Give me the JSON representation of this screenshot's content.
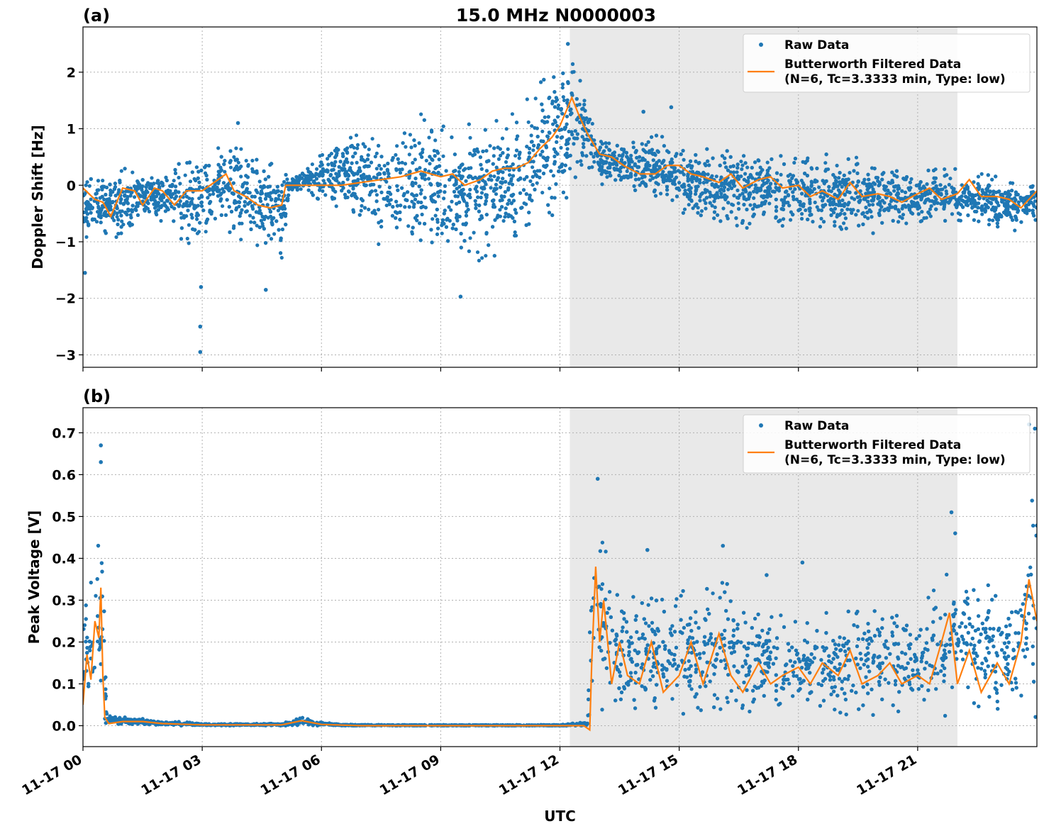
{
  "figure_title": "15.0 MHz N0000003",
  "colors": {
    "raw": "#1f77b4",
    "filtered": "#ff7f0e",
    "shade": "#d3d3d3",
    "grid": "#b0b0b0"
  },
  "chart_data": [
    {
      "type": "scatter",
      "panel": "(a)",
      "ylabel": "Doppler Shift [Hz]",
      "xlabel": "",
      "x_unit": "hours since 11-17 00 UTC",
      "xlim": [
        0,
        24
      ],
      "ylim": [
        -3.22,
        2.8
      ],
      "yticks": [
        2,
        1,
        0,
        -1,
        -2,
        -3
      ],
      "ytick_labels": [
        "2",
        "1",
        "0",
        "−1",
        "−2",
        "−3"
      ],
      "shaded_interval": [
        12.25,
        22.0
      ],
      "grid": true,
      "legend_position": "top-right",
      "legend": {
        "raw": "Raw Data",
        "filtered_line1": "Butterworth Filtered Data",
        "filtered_line2": "(N=6, Tc=3.3333 min, Type: low)"
      },
      "series": [
        {
          "name": "Raw Data",
          "kind": "band",
          "x": [
            0,
            0.5,
            1,
            1.5,
            2,
            2.5,
            3,
            3.5,
            4,
            4.5,
            5,
            5.2,
            5.5,
            6,
            6.5,
            7,
            7.5,
            8,
            8.5,
            9,
            9.5,
            10,
            10.5,
            11,
            11.5,
            12,
            12.3,
            12.6,
            13,
            13.5,
            14,
            14.5,
            15,
            15.5,
            16,
            16.5,
            17,
            17.5,
            18,
            18.5,
            19,
            19.5,
            20,
            20.5,
            21,
            21.5,
            22,
            22.5,
            23,
            23.5,
            24
          ],
          "low": [
            -1.0,
            -0.8,
            -1.2,
            -0.6,
            -0.7,
            -1.0,
            -1.2,
            -0.7,
            -1.1,
            -1.2,
            -1.3,
            -0.1,
            -0.1,
            -0.3,
            -0.4,
            -0.7,
            -1.1,
            -1.1,
            -1.2,
            -1.5,
            -1.5,
            -1.4,
            -1.2,
            -1.1,
            -0.9,
            -0.5,
            0.0,
            0.3,
            0.0,
            0.0,
            -0.2,
            -0.3,
            -0.5,
            -0.6,
            -0.7,
            -0.8,
            -0.7,
            -0.8,
            -0.8,
            -0.9,
            -0.8,
            -0.8,
            -0.9,
            -0.7,
            -0.8,
            -0.6,
            -0.7,
            -0.7,
            -0.8,
            -0.8,
            -0.6
          ],
          "high": [
            0.1,
            0.2,
            0.3,
            0.25,
            0.3,
            0.5,
            0.6,
            0.8,
            0.7,
            0.5,
            0.3,
            0.1,
            0.2,
            0.6,
            0.9,
            1.0,
            1.1,
            1.3,
            1.4,
            1.3,
            1.2,
            1.3,
            1.3,
            1.4,
            1.9,
            2.1,
            2.3,
            1.9,
            0.8,
            0.7,
            0.9,
            1.0,
            0.6,
            0.7,
            0.6,
            0.7,
            0.6,
            0.6,
            0.6,
            0.6,
            0.5,
            0.5,
            0.4,
            0.4,
            0.3,
            0.3,
            0.3,
            0.2,
            0.2,
            0.1,
            0.05
          ],
          "outliers": [
            {
              "x": 0.05,
              "y": -1.55
            },
            {
              "x": 2.95,
              "y": -2.95
            },
            {
              "x": 2.95,
              "y": -2.5
            },
            {
              "x": 2.97,
              "y": -1.8
            },
            {
              "x": 4.6,
              "y": -1.85
            },
            {
              "x": 9.5,
              "y": -1.97
            },
            {
              "x": 12.2,
              "y": 2.5
            },
            {
              "x": 14.8,
              "y": 1.38
            },
            {
              "x": 14.1,
              "y": 1.3
            },
            {
              "x": 3.9,
              "y": 1.1
            }
          ]
        },
        {
          "name": "Butterworth Filtered Data",
          "kind": "line",
          "x": [
            0,
            0.3,
            0.5,
            0.7,
            1,
            1.3,
            1.5,
            1.8,
            2,
            2.3,
            2.6,
            3,
            3.3,
            3.6,
            3.8,
            4.1,
            4.4,
            4.7,
            5.0,
            5.1,
            5.3,
            6,
            6.5,
            7,
            7.5,
            8,
            8.5,
            9,
            9.3,
            9.6,
            10,
            10.3,
            10.6,
            10.9,
            11.2,
            11.5,
            11.8,
            12.0,
            12.3,
            12.5,
            12.7,
            13.0,
            13.3,
            13.6,
            14.0,
            14.4,
            14.7,
            15.0,
            15.3,
            15.6,
            16.0,
            16.3,
            16.6,
            17.0,
            17.3,
            17.6,
            18.0,
            18.3,
            18.6,
            19.0,
            19.3,
            19.6,
            20.0,
            20.3,
            20.6,
            21.0,
            21.3,
            21.6,
            22.0,
            22.3,
            22.6,
            23.0,
            23.3,
            23.6,
            24
          ],
          "y": [
            -0.05,
            -0.25,
            -0.3,
            -0.55,
            -0.05,
            -0.1,
            -0.35,
            -0.05,
            -0.1,
            -0.35,
            -0.1,
            -0.1,
            0.05,
            0.2,
            -0.1,
            -0.2,
            -0.35,
            -0.4,
            -0.35,
            0.0,
            0.0,
            0.0,
            0.0,
            0.05,
            0.1,
            0.15,
            0.25,
            0.15,
            0.2,
            0.0,
            0.1,
            0.25,
            0.3,
            0.3,
            0.4,
            0.65,
            0.85,
            1.05,
            1.55,
            1.2,
            0.9,
            0.55,
            0.5,
            0.35,
            0.2,
            0.2,
            0.35,
            0.35,
            0.2,
            0.15,
            0.05,
            0.2,
            -0.05,
            0.1,
            0.15,
            -0.05,
            0.0,
            -0.2,
            -0.1,
            -0.25,
            0.05,
            -0.2,
            -0.15,
            -0.2,
            -0.3,
            -0.15,
            -0.05,
            -0.25,
            -0.15,
            0.1,
            -0.2,
            -0.2,
            -0.25,
            -0.4,
            -0.1
          ]
        }
      ]
    },
    {
      "type": "scatter",
      "panel": "(b)",
      "ylabel": "Peak Voltage [V]",
      "xlabel": "UTC",
      "x_unit": "hours since 11-17 00 UTC",
      "xlim": [
        0,
        24
      ],
      "ylim": [
        -0.05,
        0.76
      ],
      "yticks": [
        0.0,
        0.1,
        0.2,
        0.3,
        0.4,
        0.5,
        0.6,
        0.7
      ],
      "ytick_labels": [
        "0.0",
        "0.1",
        "0.2",
        "0.3",
        "0.4",
        "0.5",
        "0.6",
        "0.7"
      ],
      "xticks": [
        0,
        3,
        6,
        9,
        12,
        15,
        18,
        21
      ],
      "xtick_labels": [
        "11-17 00",
        "11-17 03",
        "11-17 06",
        "11-17 09",
        "11-17 12",
        "11-17 15",
        "11-17 18",
        "11-17 21"
      ],
      "shaded_interval": [
        12.25,
        22.0
      ],
      "grid": true,
      "legend_position": "top-right",
      "legend": {
        "raw": "Raw Data",
        "filtered_line1": "Butterworth Filtered Data",
        "filtered_line2": "(N=6, Tc=3.3333 min, Type: low)"
      },
      "series": [
        {
          "name": "Raw Data",
          "kind": "band",
          "x": [
            0,
            0.2,
            0.4,
            0.5,
            0.6,
            1,
            1.5,
            2,
            2.5,
            3,
            5,
            5.5,
            6,
            6.5,
            9,
            12,
            12.7,
            12.8,
            13.0,
            13.3,
            13.5,
            14,
            14.5,
            15,
            15.5,
            16,
            16.5,
            17,
            17.5,
            18,
            18.5,
            19,
            19.5,
            20,
            20.5,
            21,
            21.5,
            22,
            22.5,
            23,
            23.5,
            24
          ],
          "low": [
            0.02,
            0.03,
            0.05,
            0.02,
            0.0,
            0.0,
            0.0,
            0.0,
            0.0,
            0.0,
            0.0,
            0.0,
            0.0,
            0.0,
            0.0,
            0.0,
            0.0,
            0.03,
            0.03,
            0.02,
            0.02,
            0.02,
            0.02,
            0.02,
            0.02,
            0.02,
            0.02,
            0.02,
            0.02,
            0.02,
            0.02,
            0.02,
            0.02,
            0.02,
            0.02,
            0.02,
            0.02,
            0.02,
            0.02,
            0.02,
            0.02,
            0.02
          ],
          "high": [
            0.3,
            0.35,
            0.48,
            0.5,
            0.03,
            0.02,
            0.02,
            0.01,
            0.01,
            0.005,
            0.005,
            0.02,
            0.01,
            0.003,
            0.002,
            0.002,
            0.01,
            0.55,
            0.5,
            0.36,
            0.3,
            0.35,
            0.32,
            0.33,
            0.3,
            0.38,
            0.3,
            0.3,
            0.28,
            0.27,
            0.28,
            0.26,
            0.3,
            0.3,
            0.3,
            0.28,
            0.35,
            0.48,
            0.37,
            0.32,
            0.36,
            0.7
          ],
          "outliers": [
            {
              "x": 0.45,
              "y": 0.67
            },
            {
              "x": 0.45,
              "y": 0.63
            },
            {
              "x": 12.95,
              "y": 0.59
            },
            {
              "x": 14.2,
              "y": 0.42
            },
            {
              "x": 16.1,
              "y": 0.43
            },
            {
              "x": 17.2,
              "y": 0.36
            },
            {
              "x": 18.1,
              "y": 0.39
            },
            {
              "x": 21.85,
              "y": 0.51
            },
            {
              "x": 23.8,
              "y": 0.72
            },
            {
              "x": 23.95,
              "y": 0.71
            }
          ]
        },
        {
          "name": "Butterworth Filtered Data",
          "kind": "line",
          "x": [
            0,
            0.1,
            0.2,
            0.3,
            0.4,
            0.45,
            0.5,
            0.55,
            0.65,
            1,
            1.5,
            2,
            3,
            5,
            5.5,
            6,
            7,
            9,
            12,
            12.6,
            12.75,
            12.8,
            12.9,
            13.0,
            13.1,
            13.3,
            13.5,
            13.7,
            14.0,
            14.3,
            14.6,
            15.0,
            15.3,
            15.6,
            16.0,
            16.3,
            16.6,
            17.0,
            17.3,
            17.6,
            18.0,
            18.3,
            18.6,
            19.0,
            19.3,
            19.6,
            20.0,
            20.3,
            20.6,
            21.0,
            21.3,
            21.6,
            21.8,
            22.0,
            22.3,
            22.6,
            23.0,
            23.3,
            23.6,
            23.8,
            24
          ],
          "y": [
            0.05,
            0.17,
            0.11,
            0.25,
            0.21,
            0.33,
            0.12,
            0.02,
            0.005,
            0.01,
            0.01,
            0.005,
            0.002,
            0.002,
            0.012,
            0.003,
            0.0,
            0.0,
            0.0,
            0.0,
            -0.01,
            0.15,
            0.38,
            0.2,
            0.3,
            0.1,
            0.2,
            0.12,
            0.1,
            0.2,
            0.08,
            0.12,
            0.2,
            0.1,
            0.22,
            0.12,
            0.08,
            0.15,
            0.1,
            0.12,
            0.14,
            0.1,
            0.15,
            0.12,
            0.18,
            0.1,
            0.12,
            0.15,
            0.1,
            0.12,
            0.1,
            0.2,
            0.27,
            0.1,
            0.18,
            0.08,
            0.15,
            0.1,
            0.2,
            0.35,
            0.25
          ]
        }
      ]
    }
  ]
}
